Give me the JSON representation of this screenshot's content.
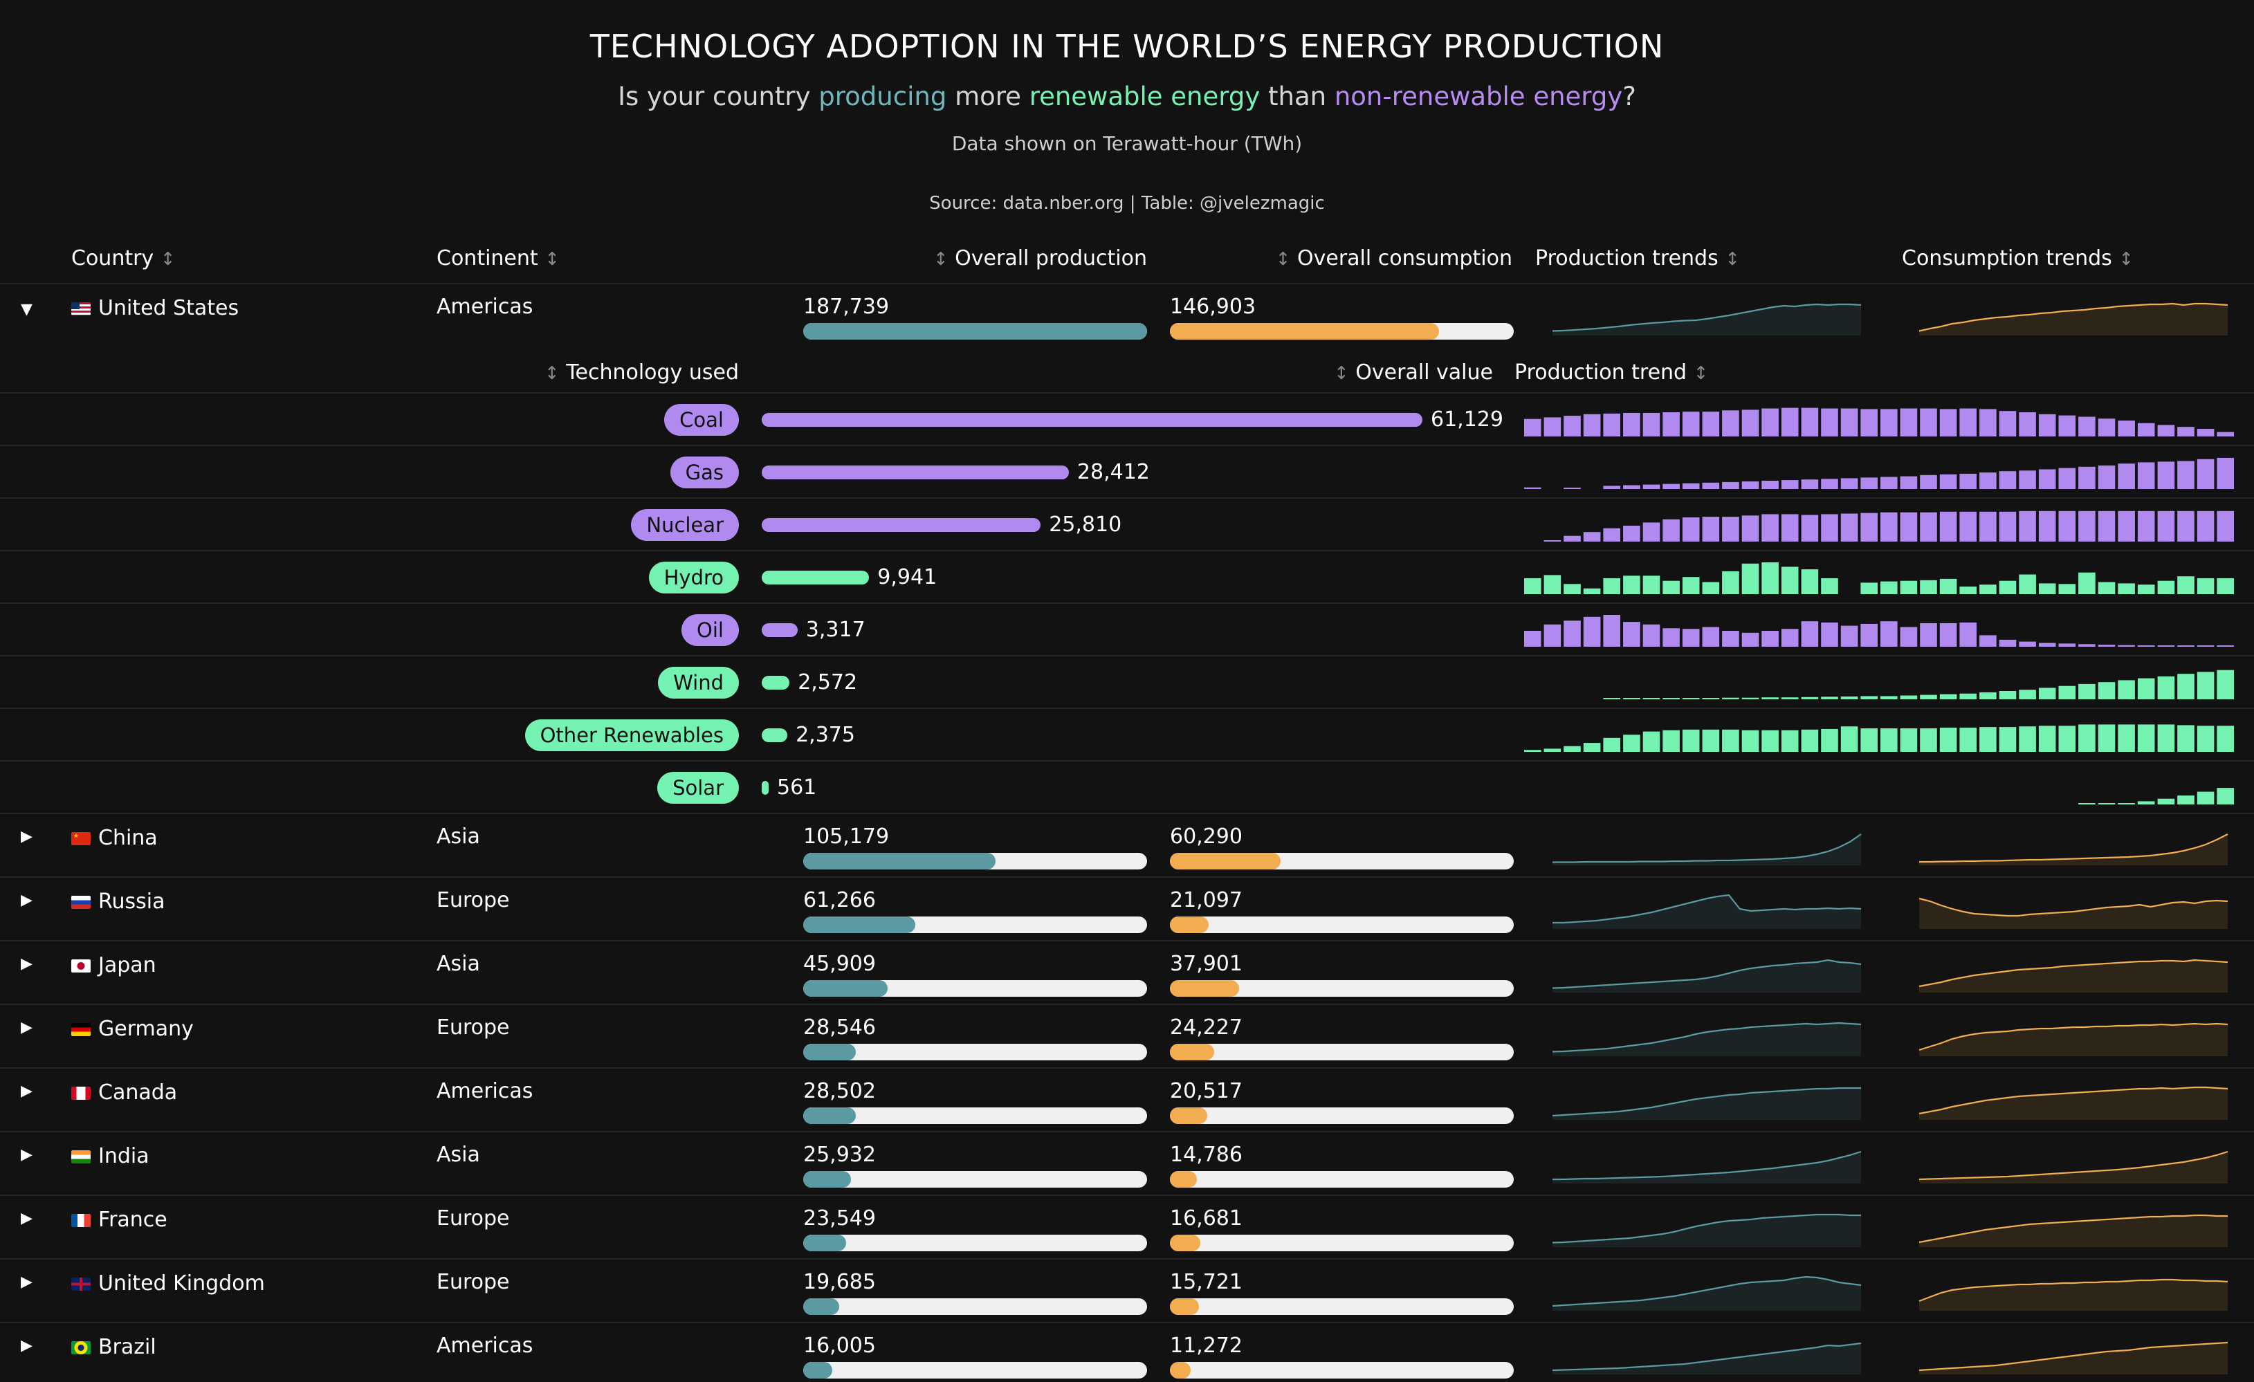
{
  "title": "TECHNOLOGY ADOPTION IN THE WORLD’S ENERGY PRODUCTION",
  "subtitle": {
    "p1": "Is your country ",
    "producing": "producing",
    "p2": " more ",
    "renewable": "renewable energy",
    "p3": " than ",
    "nonrenewable": "non-renewable energy",
    "p4": "?"
  },
  "note": "Data shown on Terawatt-hour (TWh)",
  "source": "Source: data.nber.org | Table: @jvelezmagic",
  "colors": {
    "production": "#5b9aa2",
    "consumption": "#f2ad50",
    "renewable": "#73f2b2",
    "non_renewable": "#b18af0",
    "track": "#f0f0f0"
  },
  "headers": {
    "country": "Country",
    "continent": "Continent",
    "production": "Overall production",
    "consumption": "Overall consumption",
    "production_trends": "Production trends",
    "consumption_trends": "Consumption trends",
    "sort_glyph": "↕"
  },
  "expanded": {
    "header_technology": "Technology used",
    "header_value": "Overall value",
    "header_trend": "Production trend",
    "max_value": 61129,
    "technologies": [
      {
        "name": "Coal",
        "value": 61129,
        "label": "61,129",
        "kind": "non_renewable",
        "trend": [
          0.55,
          0.6,
          0.65,
          0.7,
          0.72,
          0.74,
          0.74,
          0.76,
          0.78,
          0.78,
          0.82,
          0.84,
          0.88,
          0.9,
          0.9,
          0.88,
          0.88,
          0.86,
          0.86,
          0.88,
          0.88,
          0.86,
          0.88,
          0.86,
          0.8,
          0.76,
          0.7,
          0.66,
          0.62,
          0.56,
          0.5,
          0.42,
          0.36,
          0.3,
          0.24,
          0.14
        ]
      },
      {
        "name": "Gas",
        "value": 28412,
        "label": "28,412",
        "kind": "non_renewable",
        "trend": [
          0.05,
          0,
          0.04,
          0,
          0.1,
          0.12,
          0.14,
          0.16,
          0.18,
          0.2,
          0.22,
          0.24,
          0.26,
          0.28,
          0.3,
          0.32,
          0.34,
          0.36,
          0.38,
          0.4,
          0.44,
          0.46,
          0.48,
          0.52,
          0.56,
          0.58,
          0.62,
          0.66,
          0.7,
          0.74,
          0.8,
          0.84,
          0.86,
          0.88,
          0.94,
          0.98
        ]
      },
      {
        "name": "Nuclear",
        "value": 25810,
        "label": "25,810",
        "kind": "non_renewable",
        "trend": [
          0,
          0.04,
          0.18,
          0.3,
          0.42,
          0.5,
          0.6,
          0.7,
          0.76,
          0.78,
          0.78,
          0.82,
          0.86,
          0.86,
          0.84,
          0.86,
          0.88,
          0.9,
          0.92,
          0.92,
          0.92,
          0.94,
          0.94,
          0.94,
          0.94,
          0.96,
          0.96,
          0.96,
          0.96,
          0.96,
          0.96,
          0.96,
          0.96,
          0.96,
          0.96,
          0.96
        ]
      },
      {
        "name": "Hydro",
        "value": 9941,
        "label": "9,941",
        "kind": "renewable",
        "trend": [
          0.5,
          0.6,
          0.32,
          0.18,
          0.5,
          0.58,
          0.58,
          0.42,
          0.54,
          0.38,
          0.72,
          0.96,
          1.0,
          0.86,
          0.78,
          0.5,
          0,
          0.36,
          0.4,
          0.42,
          0.44,
          0.48,
          0.24,
          0.3,
          0.42,
          0.62,
          0.34,
          0.32,
          0.68,
          0.38,
          0.34,
          0.3,
          0.42,
          0.56,
          0.5,
          0.5
        ]
      },
      {
        "name": "Oil",
        "value": 3317,
        "label": "3,317",
        "kind": "non_renewable",
        "trend": [
          0.5,
          0.7,
          0.82,
          0.94,
          1.0,
          0.78,
          0.7,
          0.58,
          0.56,
          0.62,
          0.5,
          0.44,
          0.5,
          0.56,
          0.8,
          0.76,
          0.66,
          0.72,
          0.8,
          0.62,
          0.74,
          0.74,
          0.76,
          0.36,
          0.22,
          0.16,
          0.12,
          0.1,
          0.08,
          0.06,
          0.05,
          0.04,
          0.04,
          0.03,
          0.02,
          0.02
        ]
      },
      {
        "name": "Wind",
        "value": 2572,
        "label": "2,572",
        "kind": "renewable",
        "trend": [
          0,
          0,
          0,
          0,
          0.02,
          0.02,
          0.03,
          0.03,
          0.04,
          0.04,
          0.05,
          0.05,
          0.06,
          0.06,
          0.07,
          0.08,
          0.09,
          0.1,
          0.1,
          0.12,
          0.14,
          0.16,
          0.18,
          0.22,
          0.26,
          0.3,
          0.36,
          0.42,
          0.48,
          0.54,
          0.6,
          0.66,
          0.72,
          0.8,
          0.86,
          0.92
        ]
      },
      {
        "name": "Other Renewables",
        "value": 2375,
        "label": "2,375",
        "kind": "renewable",
        "trend": [
          0.06,
          0.1,
          0.18,
          0.28,
          0.44,
          0.54,
          0.64,
          0.68,
          0.7,
          0.7,
          0.7,
          0.68,
          0.68,
          0.68,
          0.7,
          0.72,
          0.8,
          0.74,
          0.74,
          0.74,
          0.74,
          0.76,
          0.76,
          0.78,
          0.78,
          0.8,
          0.82,
          0.82,
          0.86,
          0.86,
          0.86,
          0.86,
          0.86,
          0.84,
          0.82,
          0.82
        ]
      },
      {
        "name": "Solar",
        "value": 561,
        "label": "561",
        "kind": "renewable",
        "trend": [
          0,
          0,
          0,
          0,
          0,
          0,
          0,
          0,
          0,
          0,
          0,
          0,
          0,
          0,
          0,
          0,
          0,
          0,
          0,
          0,
          0,
          0,
          0,
          0,
          0,
          0,
          0,
          0,
          0.01,
          0.02,
          0.04,
          0.1,
          0.18,
          0.28,
          0.4,
          0.52
        ]
      }
    ]
  },
  "max_production": 187739,
  "countries": [
    {
      "name": "United States",
      "continent": "Americas",
      "flag": "us",
      "expanded": true,
      "production": 187739,
      "production_label": "187,739",
      "consumption": 146903,
      "consumption_label": "146,903",
      "prod_trend": [
        0.05,
        0.06,
        0.08,
        0.1,
        0.12,
        0.15,
        0.18,
        0.22,
        0.25,
        0.28,
        0.3,
        0.33,
        0.35,
        0.36,
        0.4,
        0.45,
        0.5,
        0.56,
        0.62,
        0.68,
        0.74,
        0.78,
        0.76,
        0.8,
        0.82,
        0.8,
        0.82,
        0.82,
        0.8
      ],
      "cons_trend": [
        0.05,
        0.12,
        0.18,
        0.26,
        0.3,
        0.36,
        0.4,
        0.44,
        0.46,
        0.5,
        0.52,
        0.56,
        0.58,
        0.62,
        0.64,
        0.66,
        0.7,
        0.72,
        0.76,
        0.78,
        0.8,
        0.82,
        0.82,
        0.84,
        0.8,
        0.84,
        0.84,
        0.82,
        0.8
      ]
    },
    {
      "name": "China",
      "continent": "Asia",
      "flag": "cn",
      "expanded": false,
      "production": 105179,
      "production_label": "105,179",
      "consumption": 60290,
      "consumption_label": "60,290",
      "prod_trend": [
        0.01,
        0.01,
        0.01,
        0.02,
        0.02,
        0.02,
        0.02,
        0.02,
        0.03,
        0.03,
        0.03,
        0.04,
        0.04,
        0.05,
        0.05,
        0.06,
        0.06,
        0.07,
        0.08,
        0.09,
        0.1,
        0.12,
        0.14,
        0.18,
        0.24,
        0.32,
        0.44,
        0.6,
        0.82
      ],
      "cons_trend": [
        0.02,
        0.02,
        0.03,
        0.03,
        0.04,
        0.04,
        0.05,
        0.05,
        0.06,
        0.07,
        0.08,
        0.08,
        0.09,
        0.1,
        0.11,
        0.12,
        0.13,
        0.14,
        0.15,
        0.16,
        0.18,
        0.2,
        0.24,
        0.28,
        0.34,
        0.42,
        0.52,
        0.66,
        0.82
      ]
    },
    {
      "name": "Russia",
      "continent": "Europe",
      "flag": "ru",
      "expanded": false,
      "production": 61266,
      "production_label": "61,266",
      "consumption": 21097,
      "consumption_label": "21,097",
      "prod_trend": [
        0.1,
        0.1,
        0.12,
        0.14,
        0.16,
        0.2,
        0.24,
        0.28,
        0.34,
        0.4,
        0.48,
        0.56,
        0.64,
        0.72,
        0.8,
        0.86,
        0.9,
        0.5,
        0.44,
        0.46,
        0.48,
        0.5,
        0.48,
        0.5,
        0.5,
        0.52,
        0.5,
        0.52,
        0.5
      ],
      "cons_trend": [
        0.8,
        0.72,
        0.6,
        0.5,
        0.42,
        0.36,
        0.34,
        0.32,
        0.3,
        0.3,
        0.34,
        0.36,
        0.38,
        0.4,
        0.42,
        0.46,
        0.5,
        0.54,
        0.56,
        0.58,
        0.62,
        0.56,
        0.62,
        0.68,
        0.7,
        0.66,
        0.72,
        0.74,
        0.72
      ]
    },
    {
      "name": "Japan",
      "continent": "Asia",
      "flag": "jp",
      "expanded": false,
      "production": 45909,
      "production_label": "45,909",
      "consumption": 37901,
      "consumption_label": "37,901",
      "prod_trend": [
        0.05,
        0.06,
        0.08,
        0.1,
        0.12,
        0.14,
        0.16,
        0.18,
        0.2,
        0.22,
        0.24,
        0.26,
        0.28,
        0.3,
        0.34,
        0.4,
        0.48,
        0.56,
        0.62,
        0.66,
        0.7,
        0.72,
        0.76,
        0.78,
        0.8,
        0.86,
        0.8,
        0.78,
        0.74
      ],
      "cons_trend": [
        0.1,
        0.16,
        0.22,
        0.3,
        0.36,
        0.42,
        0.46,
        0.5,
        0.54,
        0.58,
        0.6,
        0.62,
        0.64,
        0.68,
        0.7,
        0.72,
        0.74,
        0.76,
        0.78,
        0.8,
        0.82,
        0.82,
        0.84,
        0.84,
        0.82,
        0.86,
        0.84,
        0.82,
        0.8
      ]
    },
    {
      "name": "Germany",
      "continent": "Europe",
      "flag": "de",
      "expanded": false,
      "production": 28546,
      "production_label": "28,546",
      "consumption": 24227,
      "consumption_label": "24,227",
      "prod_trend": [
        0.05,
        0.06,
        0.08,
        0.1,
        0.12,
        0.14,
        0.18,
        0.22,
        0.26,
        0.3,
        0.36,
        0.42,
        0.48,
        0.56,
        0.62,
        0.66,
        0.7,
        0.72,
        0.76,
        0.78,
        0.8,
        0.82,
        0.84,
        0.86,
        0.84,
        0.86,
        0.88,
        0.86,
        0.84
      ],
      "cons_trend": [
        0.1,
        0.2,
        0.3,
        0.42,
        0.5,
        0.56,
        0.6,
        0.62,
        0.64,
        0.68,
        0.7,
        0.72,
        0.72,
        0.74,
        0.76,
        0.76,
        0.78,
        0.78,
        0.8,
        0.8,
        0.82,
        0.82,
        0.84,
        0.82,
        0.84,
        0.86,
        0.84,
        0.86,
        0.84
      ]
    },
    {
      "name": "Canada",
      "continent": "Americas",
      "flag": "ca",
      "expanded": false,
      "production": 28502,
      "production_label": "28,502",
      "consumption": 20517,
      "consumption_label": "20,517",
      "prod_trend": [
        0.04,
        0.06,
        0.08,
        0.1,
        0.12,
        0.14,
        0.16,
        0.2,
        0.24,
        0.28,
        0.34,
        0.4,
        0.46,
        0.52,
        0.56,
        0.6,
        0.64,
        0.66,
        0.7,
        0.72,
        0.74,
        0.76,
        0.78,
        0.8,
        0.82,
        0.82,
        0.84,
        0.84,
        0.84
      ],
      "cons_trend": [
        0.1,
        0.16,
        0.22,
        0.3,
        0.36,
        0.42,
        0.48,
        0.52,
        0.56,
        0.6,
        0.62,
        0.64,
        0.66,
        0.68,
        0.7,
        0.72,
        0.74,
        0.76,
        0.78,
        0.8,
        0.82,
        0.82,
        0.84,
        0.82,
        0.84,
        0.86,
        0.86,
        0.84,
        0.82
      ]
    },
    {
      "name": "India",
      "continent": "Asia",
      "flag": "in",
      "expanded": false,
      "production": 25932,
      "production_label": "25,932",
      "consumption": 14786,
      "consumption_label": "14,786",
      "prod_trend": [
        0.04,
        0.04,
        0.05,
        0.06,
        0.06,
        0.07,
        0.08,
        0.09,
        0.1,
        0.11,
        0.12,
        0.14,
        0.16,
        0.18,
        0.2,
        0.22,
        0.24,
        0.27,
        0.3,
        0.33,
        0.36,
        0.4,
        0.44,
        0.48,
        0.52,
        0.58,
        0.66,
        0.74,
        0.84
      ],
      "cons_trend": [
        0.04,
        0.05,
        0.06,
        0.07,
        0.08,
        0.09,
        0.1,
        0.11,
        0.12,
        0.14,
        0.16,
        0.18,
        0.2,
        0.22,
        0.24,
        0.26,
        0.28,
        0.3,
        0.32,
        0.35,
        0.38,
        0.42,
        0.46,
        0.5,
        0.54,
        0.6,
        0.66,
        0.74,
        0.84
      ]
    },
    {
      "name": "France",
      "continent": "Europe",
      "flag": "fr",
      "expanded": false,
      "production": 23549,
      "production_label": "23,549",
      "consumption": 16681,
      "consumption_label": "16,681",
      "prod_trend": [
        0.05,
        0.06,
        0.08,
        0.1,
        0.12,
        0.14,
        0.16,
        0.18,
        0.22,
        0.26,
        0.3,
        0.36,
        0.44,
        0.52,
        0.58,
        0.64,
        0.68,
        0.7,
        0.72,
        0.76,
        0.78,
        0.8,
        0.82,
        0.84,
        0.86,
        0.86,
        0.86,
        0.84,
        0.84
      ],
      "cons_trend": [
        0.06,
        0.12,
        0.18,
        0.24,
        0.3,
        0.36,
        0.42,
        0.46,
        0.5,
        0.54,
        0.58,
        0.6,
        0.62,
        0.64,
        0.66,
        0.68,
        0.7,
        0.72,
        0.74,
        0.76,
        0.78,
        0.8,
        0.8,
        0.82,
        0.82,
        0.84,
        0.84,
        0.82,
        0.82
      ]
    },
    {
      "name": "United Kingdom",
      "continent": "Europe",
      "flag": "gb",
      "expanded": false,
      "production": 19685,
      "production_label": "19,685",
      "consumption": 15721,
      "consumption_label": "15,721",
      "prod_trend": [
        0.06,
        0.08,
        0.1,
        0.12,
        0.14,
        0.16,
        0.18,
        0.2,
        0.22,
        0.26,
        0.3,
        0.34,
        0.4,
        0.46,
        0.52,
        0.58,
        0.64,
        0.7,
        0.74,
        0.76,
        0.78,
        0.8,
        0.86,
        0.9,
        0.88,
        0.82,
        0.74,
        0.7,
        0.66
      ],
      "cons_trend": [
        0.2,
        0.32,
        0.44,
        0.52,
        0.56,
        0.6,
        0.62,
        0.64,
        0.66,
        0.68,
        0.68,
        0.7,
        0.7,
        0.72,
        0.72,
        0.74,
        0.74,
        0.76,
        0.76,
        0.78,
        0.8,
        0.8,
        0.82,
        0.82,
        0.8,
        0.8,
        0.78,
        0.78,
        0.76
      ]
    },
    {
      "name": "Brazil",
      "continent": "Americas",
      "flag": "br",
      "expanded": false,
      "production": 16005,
      "production_label": "16,005",
      "consumption": 11272,
      "consumption_label": "11,272",
      "prod_trend": [
        0.04,
        0.05,
        0.06,
        0.07,
        0.08,
        0.09,
        0.1,
        0.12,
        0.14,
        0.16,
        0.18,
        0.2,
        0.22,
        0.26,
        0.3,
        0.34,
        0.38,
        0.42,
        0.46,
        0.5,
        0.54,
        0.58,
        0.62,
        0.66,
        0.7,
        0.76,
        0.74,
        0.78,
        0.82
      ],
      "cons_trend": [
        0.04,
        0.06,
        0.08,
        0.1,
        0.12,
        0.14,
        0.16,
        0.18,
        0.22,
        0.26,
        0.3,
        0.34,
        0.38,
        0.42,
        0.46,
        0.5,
        0.54,
        0.58,
        0.6,
        0.62,
        0.66,
        0.7,
        0.72,
        0.74,
        0.76,
        0.78,
        0.8,
        0.82,
        0.84
      ]
    }
  ]
}
